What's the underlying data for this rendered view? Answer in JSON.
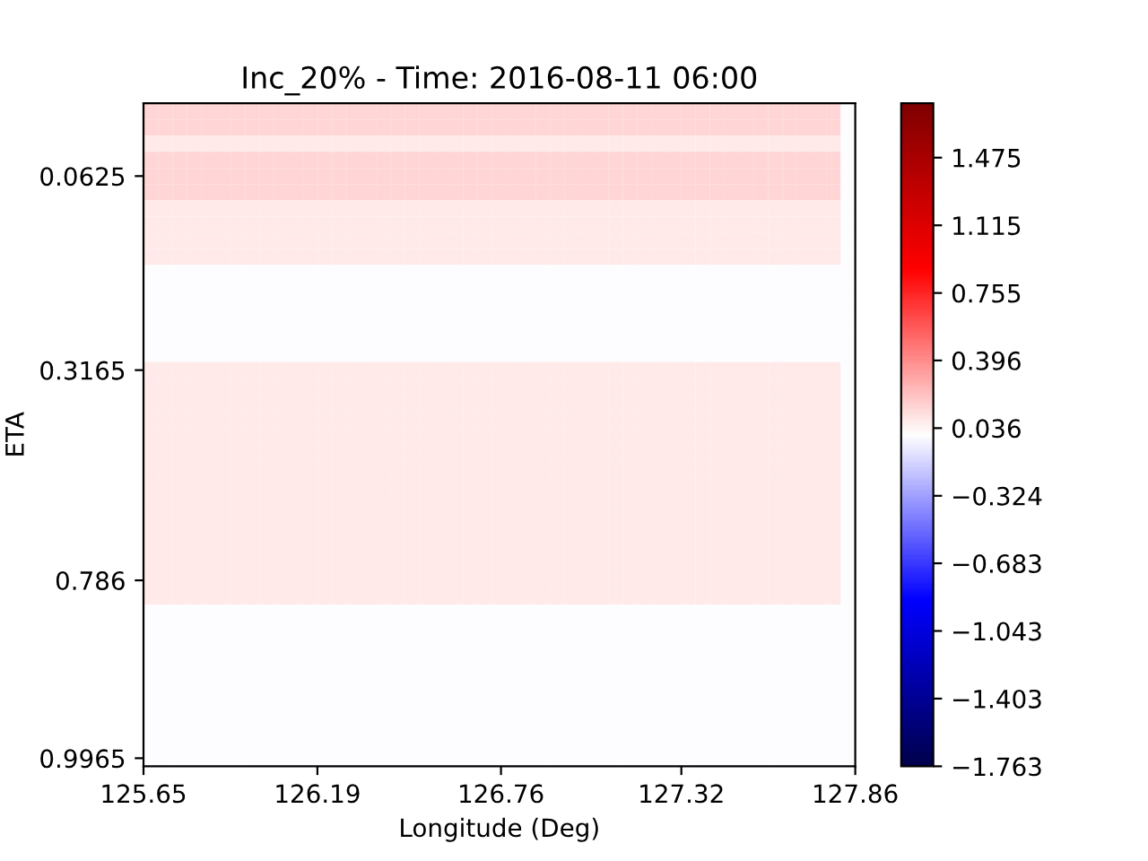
{
  "chart_data": {
    "type": "heatmap",
    "title": "Inc_20% - Time: 2016-08-11 06:00",
    "xlabel": "Longitude (Deg)",
    "ylabel": "ETA",
    "cells": [
      [
        0.15,
        0.15,
        0.15,
        0.15,
        0.15,
        0.15,
        0.15,
        0.15,
        0.15,
        0.15,
        0.15,
        0.15,
        0.15,
        0.15,
        0.15,
        0.15,
        0.15,
        0.15,
        0.15,
        0.15,
        0.15,
        0.15,
        0.15,
        0.15,
        0.15,
        0.15,
        0.15,
        0.15,
        0.15,
        0.15,
        0.15,
        0.15,
        0.15,
        0.15,
        0.15,
        0.15,
        0.15,
        0.15,
        0.15,
        0.15,
        0.15,
        0.15,
        0.15,
        0.15,
        0.15,
        0.15,
        0.15,
        0.15,
        0
      ],
      [
        0.15,
        0.15,
        0.15,
        0.15,
        0.15,
        0.15,
        0.15,
        0.15,
        0.15,
        0.15,
        0.15,
        0.15,
        0.15,
        0.15,
        0.15,
        0.15,
        0.15,
        0.15,
        0.15,
        0.15,
        0.15,
        0.15,
        0.15,
        0.15,
        0.15,
        0.15,
        0.15,
        0.15,
        0.15,
        0.15,
        0.15,
        0.15,
        0.15,
        0.15,
        0.15,
        0.15,
        0.15,
        0.15,
        0.15,
        0.15,
        0.15,
        0.15,
        0.15,
        0.15,
        0.15,
        0.15,
        0.15,
        0.15,
        0
      ],
      [
        0.08,
        0.08,
        0.08,
        0.08,
        0.08,
        0.08,
        0.08,
        0.08,
        0.08,
        0.08,
        0.08,
        0.08,
        0.08,
        0.08,
        0.08,
        0.08,
        0.08,
        0.08,
        0.08,
        0.08,
        0.08,
        0.08,
        0.08,
        0.08,
        0.08,
        0.08,
        0.08,
        0.08,
        0.08,
        0.08,
        0.08,
        0.08,
        0.08,
        0.08,
        0.08,
        0.08,
        0.08,
        0.08,
        0.08,
        0.08,
        0.08,
        0.08,
        0.08,
        0.08,
        0.08,
        0.08,
        0.08,
        0.08,
        0
      ],
      [
        0.15,
        0.15,
        0.15,
        0.15,
        0.15,
        0.15,
        0.15,
        0.15,
        0.15,
        0.15,
        0.15,
        0.15,
        0.15,
        0.15,
        0.15,
        0.15,
        0.15,
        0.15,
        0.15,
        0.15,
        0.15,
        0.15,
        0.15,
        0.15,
        0.15,
        0.15,
        0.15,
        0.15,
        0.15,
        0.15,
        0.15,
        0.15,
        0.15,
        0.15,
        0.15,
        0.15,
        0.15,
        0.15,
        0.15,
        0.15,
        0.15,
        0.15,
        0.15,
        0.15,
        0.15,
        0.15,
        0.15,
        0.15,
        0
      ],
      [
        0.15,
        0.15,
        0.15,
        0.15,
        0.15,
        0.15,
        0.15,
        0.15,
        0.15,
        0.15,
        0.15,
        0.15,
        0.15,
        0.15,
        0.15,
        0.15,
        0.15,
        0.15,
        0.15,
        0.15,
        0.15,
        0.15,
        0.15,
        0.15,
        0.15,
        0.15,
        0.15,
        0.15,
        0.15,
        0.15,
        0.15,
        0.15,
        0.15,
        0.15,
        0.15,
        0.15,
        0.15,
        0.15,
        0.15,
        0.15,
        0.15,
        0.15,
        0.15,
        0.15,
        0.15,
        0.15,
        0.15,
        0.15,
        0
      ],
      [
        0.15,
        0.15,
        0.15,
        0.15,
        0.15,
        0.15,
        0.15,
        0.15,
        0.15,
        0.15,
        0.15,
        0.15,
        0.15,
        0.15,
        0.15,
        0.15,
        0.15,
        0.15,
        0.15,
        0.15,
        0.15,
        0.15,
        0.15,
        0.15,
        0.15,
        0.15,
        0.15,
        0.15,
        0.15,
        0.15,
        0.15,
        0.15,
        0.15,
        0.15,
        0.15,
        0.15,
        0.15,
        0.15,
        0.15,
        0.15,
        0.15,
        0.15,
        0.15,
        0.15,
        0.15,
        0.15,
        0.15,
        0.15,
        0
      ],
      [
        0.08,
        0.08,
        0.08,
        0.08,
        0.08,
        0.08,
        0.08,
        0.08,
        0.08,
        0.08,
        0.08,
        0.08,
        0.08,
        0.08,
        0.08,
        0.08,
        0.08,
        0.08,
        0.08,
        0.08,
        0.08,
        0.08,
        0.08,
        0.08,
        0.08,
        0.08,
        0.08,
        0.08,
        0.08,
        0.08,
        0.08,
        0.08,
        0.08,
        0.08,
        0.08,
        0.08,
        0.08,
        0.08,
        0.08,
        0.08,
        0.08,
        0.08,
        0.08,
        0.08,
        0.08,
        0.08,
        0.08,
        0.08,
        0
      ],
      [
        0.08,
        0.08,
        0.08,
        0.08,
        0.08,
        0.08,
        0.08,
        0.08,
        0.08,
        0.08,
        0.08,
        0.08,
        0.08,
        0.08,
        0.08,
        0.08,
        0.08,
        0.08,
        0.08,
        0.08,
        0.08,
        0.08,
        0.08,
        0.08,
        0.08,
        0.08,
        0.08,
        0.08,
        0.08,
        0.08,
        0.08,
        0.08,
        0.08,
        0.08,
        0.08,
        0.08,
        0.08,
        0.08,
        0.08,
        0.08,
        0.08,
        0.08,
        0.08,
        0.08,
        0.08,
        0.08,
        0.08,
        0.08,
        0
      ],
      [
        0.08,
        0.08,
        0.08,
        0.08,
        0.08,
        0.08,
        0.08,
        0.08,
        0.08,
        0.08,
        0.08,
        0.08,
        0.08,
        0.08,
        0.08,
        0.08,
        0.08,
        0.08,
        0.08,
        0.08,
        0.08,
        0.08,
        0.08,
        0.08,
        0.08,
        0.08,
        0.08,
        0.08,
        0.08,
        0.08,
        0.08,
        0.08,
        0.08,
        0.08,
        0.08,
        0.08,
        0.08,
        0.08,
        0.08,
        0.08,
        0.08,
        0.08,
        0.08,
        0.08,
        0.08,
        0.08,
        0.08,
        0.08,
        0
      ],
      [
        0.08,
        0.08,
        0.08,
        0.08,
        0.08,
        0.08,
        0.08,
        0.08,
        0.08,
        0.08,
        0.08,
        0.08,
        0.08,
        0.08,
        0.08,
        0.08,
        0.08,
        0.08,
        0.08,
        0.08,
        0.08,
        0.08,
        0.08,
        0.08,
        0.08,
        0.08,
        0.08,
        0.08,
        0.08,
        0.08,
        0.08,
        0.08,
        0.08,
        0.08,
        0.08,
        0.08,
        0.08,
        0.08,
        0.08,
        0.08,
        0.08,
        0.08,
        0.08,
        0.08,
        0.08,
        0.08,
        0.08,
        0.08,
        0
      ],
      [
        0,
        0,
        0,
        0,
        0,
        0,
        0,
        0,
        0,
        0,
        0,
        0,
        0,
        0,
        0,
        0,
        0,
        0,
        0,
        0,
        0,
        0,
        0,
        0,
        0,
        0,
        0,
        0,
        0,
        0,
        0,
        0,
        0,
        0,
        0,
        0,
        0,
        0,
        0,
        0,
        0,
        0,
        0,
        0,
        0,
        0,
        0,
        0,
        0
      ],
      [
        0,
        0,
        0,
        0,
        0,
        0,
        0,
        0,
        0,
        0,
        0,
        0,
        0,
        0,
        0,
        0,
        0,
        0,
        0,
        0,
        0,
        0,
        0,
        0,
        0,
        0,
        0,
        0,
        0,
        0,
        0,
        0,
        0,
        0,
        0,
        0,
        0,
        0,
        0,
        0,
        0,
        0,
        0,
        0,
        0,
        0,
        0,
        0,
        0
      ],
      [
        0,
        0,
        0,
        0,
        0,
        0,
        0,
        0,
        0,
        0,
        0,
        0,
        0,
        0,
        0,
        0,
        0,
        0,
        0,
        0,
        0,
        0,
        0,
        0,
        0,
        0,
        0,
        0,
        0,
        0,
        0,
        0,
        0,
        0,
        0,
        0,
        0,
        0,
        0,
        0,
        0,
        0,
        0,
        0,
        0,
        0,
        0,
        0,
        0
      ],
      [
        0,
        0,
        0,
        0,
        0,
        0,
        0,
        0,
        0,
        0,
        0,
        0,
        0,
        0,
        0,
        0,
        0,
        0,
        0,
        0,
        0,
        0,
        0,
        0,
        0,
        0,
        0,
        0,
        0,
        0,
        0,
        0,
        0,
        0,
        0,
        0,
        0,
        0,
        0,
        0,
        0,
        0,
        0,
        0,
        0,
        0,
        0,
        0,
        0
      ],
      [
        0,
        0,
        0,
        0,
        0,
        0,
        0,
        0,
        0,
        0,
        0,
        0,
        0,
        0,
        0,
        0,
        0,
        0,
        0,
        0,
        0,
        0,
        0,
        0,
        0,
        0,
        0,
        0,
        0,
        0,
        0,
        0,
        0,
        0,
        0,
        0,
        0,
        0,
        0,
        0,
        0,
        0,
        0,
        0,
        0,
        0,
        0,
        0,
        0
      ],
      [
        0,
        0,
        0,
        0,
        0,
        0,
        0,
        0,
        0,
        0,
        0,
        0,
        0,
        0,
        0,
        0,
        0,
        0,
        0,
        0,
        0,
        0,
        0,
        0,
        0,
        0,
        0,
        0,
        0,
        0,
        0,
        0,
        0,
        0,
        0,
        0,
        0,
        0,
        0,
        0,
        0,
        0,
        0,
        0,
        0,
        0,
        0,
        0,
        0
      ],
      [
        0.08,
        0.08,
        0.08,
        0.08,
        0.08,
        0.08,
        0.08,
        0.08,
        0.08,
        0.08,
        0.08,
        0.08,
        0.08,
        0.08,
        0.08,
        0.08,
        0.08,
        0.08,
        0.08,
        0.08,
        0.08,
        0.08,
        0.08,
        0.08,
        0.08,
        0.08,
        0.08,
        0.08,
        0.08,
        0.08,
        0.08,
        0.08,
        0.08,
        0.08,
        0.08,
        0.08,
        0.08,
        0.08,
        0.08,
        0.08,
        0.08,
        0.08,
        0.08,
        0.08,
        0.08,
        0.08,
        0.08,
        0.08,
        0
      ],
      [
        0.08,
        0.08,
        0.08,
        0.08,
        0.08,
        0.08,
        0.08,
        0.08,
        0.08,
        0.08,
        0.08,
        0.08,
        0.08,
        0.08,
        0.08,
        0.08,
        0.08,
        0.08,
        0.08,
        0.08,
        0.08,
        0.08,
        0.08,
        0.08,
        0.08,
        0.08,
        0.08,
        0.08,
        0.08,
        0.08,
        0.08,
        0.08,
        0.08,
        0.08,
        0.08,
        0.08,
        0.08,
        0.08,
        0.08,
        0.08,
        0.08,
        0.08,
        0.08,
        0.08,
        0.08,
        0.08,
        0.08,
        0.08,
        0
      ],
      [
        0.08,
        0.08,
        0.08,
        0.08,
        0.08,
        0.08,
        0.08,
        0.08,
        0.08,
        0.08,
        0.08,
        0.08,
        0.08,
        0.08,
        0.08,
        0.08,
        0.08,
        0.08,
        0.08,
        0.08,
        0.08,
        0.08,
        0.08,
        0.08,
        0.08,
        0.08,
        0.08,
        0.08,
        0.08,
        0.08,
        0.08,
        0.08,
        0.08,
        0.08,
        0.08,
        0.08,
        0.08,
        0.08,
        0.08,
        0.08,
        0.08,
        0.08,
        0.08,
        0.08,
        0.08,
        0.08,
        0.08,
        0.08,
        0
      ],
      [
        0.08,
        0.08,
        0.08,
        0.08,
        0.08,
        0.08,
        0.08,
        0.08,
        0.08,
        0.08,
        0.08,
        0.08,
        0.08,
        0.08,
        0.08,
        0.08,
        0.08,
        0.08,
        0.08,
        0.08,
        0.08,
        0.08,
        0.08,
        0.08,
        0.08,
        0.08,
        0.08,
        0.08,
        0.08,
        0.08,
        0.08,
        0.08,
        0.08,
        0.08,
        0.08,
        0.08,
        0.08,
        0.08,
        0.08,
        0.08,
        0.08,
        0.08,
        0.08,
        0.08,
        0.08,
        0.08,
        0.08,
        0.08,
        0
      ],
      [
        0.08,
        0.08,
        0.08,
        0.08,
        0.08,
        0.08,
        0.08,
        0.08,
        0.08,
        0.08,
        0.08,
        0.08,
        0.08,
        0.08,
        0.08,
        0.08,
        0.08,
        0.08,
        0.08,
        0.08,
        0.08,
        0.08,
        0.08,
        0.08,
        0.08,
        0.08,
        0.08,
        0.08,
        0.08,
        0.08,
        0.08,
        0.08,
        0.08,
        0.08,
        0.08,
        0.08,
        0.08,
        0.08,
        0.08,
        0.08,
        0.08,
        0.08,
        0.08,
        0.08,
        0.08,
        0.08,
        0.08,
        0.08,
        0
      ],
      [
        0.08,
        0.08,
        0.08,
        0.08,
        0.08,
        0.08,
        0.08,
        0.08,
        0.08,
        0.08,
        0.08,
        0.08,
        0.08,
        0.08,
        0.08,
        0.08,
        0.08,
        0.08,
        0.08,
        0.08,
        0.08,
        0.08,
        0.08,
        0.08,
        0.08,
        0.08,
        0.08,
        0.08,
        0.08,
        0.08,
        0.08,
        0.08,
        0.08,
        0.08,
        0.08,
        0.08,
        0.08,
        0.08,
        0.08,
        0.08,
        0.08,
        0.08,
        0.08,
        0.08,
        0.08,
        0.08,
        0.08,
        0.08,
        0
      ],
      [
        0.08,
        0.08,
        0.08,
        0.08,
        0.08,
        0.08,
        0.08,
        0.08,
        0.08,
        0.08,
        0.08,
        0.08,
        0.08,
        0.08,
        0.08,
        0.08,
        0.08,
        0.08,
        0.08,
        0.08,
        0.08,
        0.08,
        0.08,
        0.08,
        0.08,
        0.08,
        0.08,
        0.08,
        0.08,
        0.08,
        0.08,
        0.08,
        0.08,
        0.08,
        0.08,
        0.08,
        0.08,
        0.08,
        0.08,
        0.08,
        0.08,
        0.08,
        0.08,
        0.08,
        0.08,
        0.08,
        0.08,
        0.08,
        0
      ],
      [
        0.08,
        0.08,
        0.08,
        0.08,
        0.08,
        0.08,
        0.08,
        0.08,
        0.08,
        0.08,
        0.08,
        0.08,
        0.08,
        0.08,
        0.08,
        0.08,
        0.08,
        0.08,
        0.08,
        0.08,
        0.08,
        0.08,
        0.08,
        0.08,
        0.08,
        0.08,
        0.08,
        0.08,
        0.08,
        0.08,
        0.08,
        0.08,
        0.08,
        0.08,
        0.08,
        0.08,
        0.08,
        0.08,
        0.08,
        0.08,
        0.08,
        0.08,
        0.08,
        0.08,
        0.08,
        0.08,
        0.08,
        0.08,
        0
      ],
      [
        0.08,
        0.08,
        0.08,
        0.08,
        0.08,
        0.08,
        0.08,
        0.08,
        0.08,
        0.08,
        0.08,
        0.08,
        0.08,
        0.08,
        0.08,
        0.08,
        0.08,
        0.08,
        0.08,
        0.08,
        0.08,
        0.08,
        0.08,
        0.08,
        0.08,
        0.08,
        0.08,
        0.08,
        0.08,
        0.08,
        0.08,
        0.08,
        0.08,
        0.08,
        0.08,
        0.08,
        0.08,
        0.08,
        0.08,
        0.08,
        0.08,
        0.08,
        0.08,
        0.08,
        0.08,
        0.08,
        0.08,
        0.08,
        0
      ],
      [
        0.08,
        0.08,
        0.08,
        0.08,
        0.08,
        0.08,
        0.08,
        0.08,
        0.08,
        0.08,
        0.08,
        0.08,
        0.08,
        0.08,
        0.08,
        0.08,
        0.08,
        0.08,
        0.08,
        0.08,
        0.08,
        0.08,
        0.08,
        0.08,
        0.08,
        0.08,
        0.08,
        0.08,
        0.08,
        0.08,
        0.08,
        0.08,
        0.08,
        0.08,
        0.08,
        0.08,
        0.08,
        0.08,
        0.08,
        0.08,
        0.08,
        0.08,
        0.08,
        0.08,
        0.08,
        0.08,
        0.08,
        0.08,
        0
      ],
      [
        0.08,
        0.08,
        0.08,
        0.08,
        0.08,
        0.08,
        0.08,
        0.08,
        0.08,
        0.08,
        0.08,
        0.08,
        0.08,
        0.08,
        0.08,
        0.08,
        0.08,
        0.08,
        0.08,
        0.08,
        0.08,
        0.08,
        0.08,
        0.08,
        0.08,
        0.08,
        0.08,
        0.08,
        0.08,
        0.08,
        0.08,
        0.08,
        0.08,
        0.08,
        0.08,
        0.08,
        0.08,
        0.08,
        0.08,
        0.08,
        0.08,
        0.08,
        0.08,
        0.08,
        0.08,
        0.08,
        0.08,
        0.08,
        0
      ],
      [
        0.08,
        0.08,
        0.08,
        0.08,
        0.08,
        0.08,
        0.08,
        0.08,
        0.08,
        0.08,
        0.08,
        0.08,
        0.08,
        0.08,
        0.08,
        0.08,
        0.08,
        0.08,
        0.08,
        0.08,
        0.08,
        0.08,
        0.08,
        0.08,
        0.08,
        0.08,
        0.08,
        0.08,
        0.08,
        0.08,
        0.08,
        0.08,
        0.08,
        0.08,
        0.08,
        0.08,
        0.08,
        0.08,
        0.08,
        0.08,
        0.08,
        0.08,
        0.08,
        0.08,
        0.08,
        0.08,
        0.08,
        0.08,
        0
      ],
      [
        0.08,
        0.08,
        0.08,
        0.08,
        0.08,
        0.08,
        0.08,
        0.08,
        0.08,
        0.08,
        0.08,
        0.08,
        0.08,
        0.08,
        0.08,
        0.08,
        0.08,
        0.08,
        0.08,
        0.08,
        0.08,
        0.08,
        0.08,
        0.08,
        0.08,
        0.08,
        0.08,
        0.08,
        0.08,
        0.08,
        0.08,
        0.08,
        0.08,
        0.08,
        0.08,
        0.08,
        0.08,
        0.08,
        0.08,
        0.08,
        0.08,
        0.08,
        0.08,
        0.08,
        0.08,
        0.08,
        0.08,
        0.08,
        0
      ],
      [
        0.08,
        0.08,
        0.08,
        0.08,
        0.08,
        0.08,
        0.08,
        0.08,
        0.08,
        0.08,
        0.08,
        0.08,
        0.08,
        0.08,
        0.08,
        0.08,
        0.08,
        0.08,
        0.08,
        0.08,
        0.08,
        0.08,
        0.08,
        0.08,
        0.08,
        0.08,
        0.08,
        0.08,
        0.08,
        0.08,
        0.08,
        0.08,
        0.08,
        0.08,
        0.08,
        0.08,
        0.08,
        0.08,
        0.08,
        0.08,
        0.08,
        0.08,
        0.08,
        0.08,
        0.08,
        0.08,
        0.08,
        0.08,
        0
      ],
      [
        0.08,
        0.08,
        0.08,
        0.08,
        0.08,
        0.08,
        0.08,
        0.08,
        0.08,
        0.08,
        0.08,
        0.08,
        0.08,
        0.08,
        0.08,
        0.08,
        0.08,
        0.08,
        0.08,
        0.08,
        0.08,
        0.08,
        0.08,
        0.08,
        0.08,
        0.08,
        0.08,
        0.08,
        0.08,
        0.08,
        0.08,
        0.08,
        0.08,
        0.08,
        0.08,
        0.08,
        0.08,
        0.08,
        0.08,
        0.08,
        0.08,
        0.08,
        0.08,
        0.08,
        0.08,
        0.08,
        0.08,
        0.08,
        0
      ],
      [
        0,
        0,
        0,
        0,
        0,
        0,
        0,
        0,
        0,
        0,
        0,
        0,
        0,
        0,
        0,
        0,
        0,
        0,
        0,
        0,
        0,
        0,
        0,
        0,
        0,
        0,
        0,
        0,
        0,
        0,
        0,
        0,
        0,
        0,
        0,
        0,
        0,
        0,
        0,
        0,
        0,
        0,
        0,
        0,
        0,
        0,
        0,
        0,
        0
      ],
      [
        0,
        0,
        0,
        0,
        0,
        0,
        0,
        0,
        0,
        0,
        0,
        0,
        0,
        0,
        0,
        0,
        0,
        0,
        0,
        0,
        0,
        0,
        0,
        0,
        0,
        0,
        0,
        0,
        0,
        0,
        0,
        0,
        0,
        0,
        0,
        0,
        0,
        0,
        0,
        0,
        0,
        0,
        0,
        0,
        0,
        0,
        0,
        0,
        0
      ],
      [
        0,
        0,
        0,
        0,
        0,
        0,
        0,
        0,
        0,
        0,
        0,
        0,
        0,
        0,
        0,
        0,
        0,
        0,
        0,
        0,
        0,
        0,
        0,
        0,
        0,
        0,
        0,
        0,
        0,
        0,
        0,
        0,
        0,
        0,
        0,
        0,
        0,
        0,
        0,
        0,
        0,
        0,
        0,
        0,
        0,
        0,
        0,
        0,
        0
      ],
      [
        0,
        0,
        0,
        0,
        0,
        0,
        0,
        0,
        0,
        0,
        0,
        0,
        0,
        0,
        0,
        0,
        0,
        0,
        0,
        0,
        0,
        0,
        0,
        0,
        0,
        0,
        0,
        0,
        0,
        0,
        0,
        0,
        0,
        0,
        0,
        0,
        0,
        0,
        0,
        0,
        0,
        0,
        0,
        0,
        0,
        0,
        0,
        0,
        0
      ],
      [
        0,
        0,
        0,
        0,
        0,
        0,
        0,
        0,
        0,
        0,
        0,
        0,
        0,
        0,
        0,
        0,
        0,
        0,
        0,
        0,
        0,
        0,
        0,
        0,
        0,
        0,
        0,
        0,
        0,
        0,
        0,
        0,
        0,
        0,
        0,
        0,
        0,
        0,
        0,
        0,
        0,
        0,
        0,
        0,
        0,
        0,
        0,
        0,
        0
      ],
      [
        0,
        0,
        0,
        0,
        0,
        0,
        0,
        0,
        0,
        0,
        0,
        0,
        0,
        0,
        0,
        0,
        0,
        0,
        0,
        0,
        0,
        0,
        0,
        0,
        0,
        0,
        0,
        0,
        0,
        0,
        0,
        0,
        0,
        0,
        0,
        0,
        0,
        0,
        0,
        0,
        0,
        0,
        0,
        0,
        0,
        0,
        0,
        0,
        0
      ],
      [
        0,
        0,
        0,
        0,
        0,
        0,
        0,
        0,
        0,
        0,
        0,
        0,
        0,
        0,
        0,
        0,
        0,
        0,
        0,
        0,
        0,
        0,
        0,
        0,
        0,
        0,
        0,
        0,
        0,
        0,
        0,
        0,
        0,
        0,
        0,
        0,
        0,
        0,
        0,
        0,
        0,
        0,
        0,
        0,
        0,
        0,
        0,
        0,
        0
      ],
      [
        0,
        0,
        0,
        0,
        0,
        0,
        0,
        0,
        0,
        0,
        0,
        0,
        0,
        0,
        0,
        0,
        0,
        0,
        0,
        0,
        0,
        0,
        0,
        0,
        0,
        0,
        0,
        0,
        0,
        0,
        0,
        0,
        0,
        0,
        0,
        0,
        0,
        0,
        0,
        0,
        0,
        0,
        0,
        0,
        0,
        0,
        0,
        0,
        0
      ],
      [
        0,
        0,
        0,
        0,
        0,
        0,
        0,
        0,
        0,
        0,
        0,
        0,
        0,
        0,
        0,
        0,
        0,
        0,
        0,
        0,
        0,
        0,
        0,
        0,
        0,
        0,
        0,
        0,
        0,
        0,
        0,
        0,
        0,
        0,
        0,
        0,
        0,
        0,
        0,
        0,
        0,
        0,
        0,
        0,
        0,
        0,
        0,
        0,
        0
      ],
      [
        0,
        0,
        0,
        0,
        0,
        0,
        0,
        0,
        0,
        0,
        0,
        0,
        0,
        0,
        0,
        0,
        0,
        0,
        0,
        0,
        0,
        0,
        0,
        0,
        0,
        0,
        0,
        0,
        0,
        0,
        0,
        0,
        0,
        0,
        0,
        0,
        0,
        0,
        0,
        0,
        0,
        0,
        0,
        0,
        0,
        0,
        0,
        0,
        0
      ]
    ],
    "xlim": [
      125.65,
      127.86
    ],
    "xticks": [
      125.65,
      126.19,
      126.76,
      127.32,
      127.86
    ],
    "y_categories": [
      null,
      null,
      null,
      null,
      "0.0625",
      null,
      null,
      null,
      null,
      null,
      null,
      null,
      null,
      null,
      null,
      null,
      "0.3165",
      null,
      null,
      null,
      null,
      null,
      null,
      null,
      null,
      null,
      null,
      null,
      null,
      "0.786",
      null,
      null,
      null,
      null,
      null,
      null,
      null,
      null,
      null,
      null,
      "0.9965"
    ],
    "clim": [
      -1.763,
      1.764
    ],
    "cticks": [
      {
        "value": -1.763,
        "label": "−1.763"
      },
      {
        "value": -1.403,
        "label": "−1.403"
      },
      {
        "value": -1.043,
        "label": "−1.043"
      },
      {
        "value": -0.683,
        "label": "−0.683"
      },
      {
        "value": -0.324,
        "label": "−0.324"
      },
      0.036,
      0.396,
      0.755,
      1.115,
      1.475
    ]
  }
}
